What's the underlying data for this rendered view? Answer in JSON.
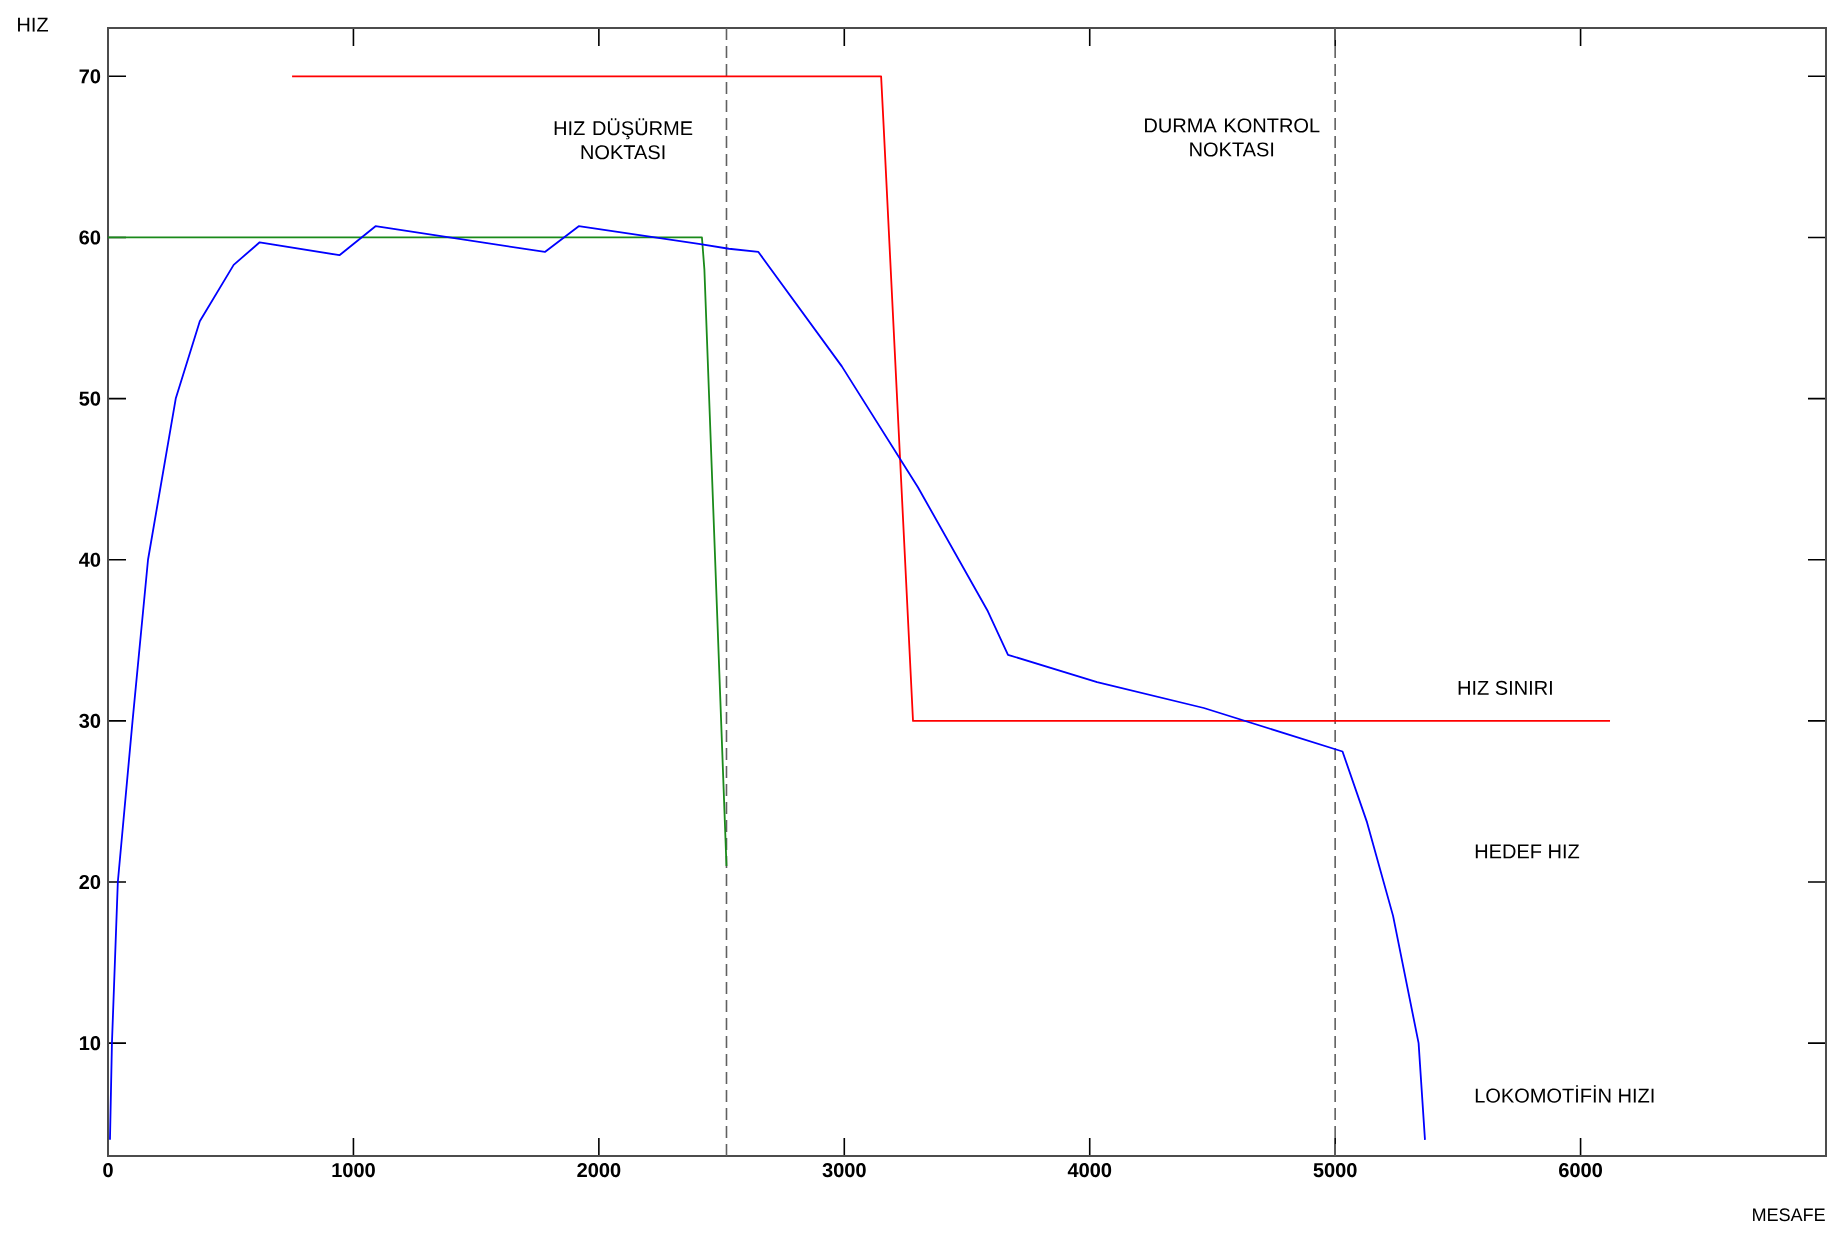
{
  "chart_data": {
    "type": "line",
    "xlabel": "MESAFE",
    "ylabel": "HIZ",
    "xlim": [
      0,
      7000
    ],
    "ylim": [
      3,
      73
    ],
    "xticks": [
      0,
      1000,
      2000,
      3000,
      4000,
      5000,
      6000
    ],
    "yticks": [
      10,
      20,
      30,
      40,
      50,
      60,
      70
    ],
    "annotations": [
      "HIZ SINIRI",
      "HEDEF HIZ",
      "LOKOMOTİFİN HIZI"
    ],
    "grid": false,
    "marker": "none",
    "line_style": "solid",
    "series": [
      {
        "color": "#ff0000",
        "x": [
          750,
          3150,
          3160,
          3280,
          6120
        ],
        "values": [
          70,
          70,
          67,
          30,
          30
        ]
      },
      {
        "color": "#1a8a1a",
        "x": [
          0,
          2420,
          2430,
          2520
        ],
        "values": [
          60,
          60,
          58,
          21
        ]
      },
      {
        "color": "#0000ff",
        "x": [
          8,
          16,
          40,
          100,
          163,
          276,
          374,
          512,
          618,
          943,
          1090,
          1780,
          1918,
          2407,
          2530,
          2650,
          2990,
          3300,
          3585,
          3667,
          4030,
          4465,
          5030,
          5130,
          5236,
          5340,
          5366
        ],
        "values": [
          4,
          10,
          20,
          30,
          40,
          50,
          54.8,
          58.3,
          59.7,
          58.9,
          60.7,
          59.1,
          60.7,
          59.6,
          59.3,
          59.1,
          52,
          44.5,
          36.8,
          34.1,
          32.4,
          30.8,
          28.1,
          23.7,
          17.9,
          10,
          4
        ]
      }
    ],
    "ref_lines": [
      {
        "axis": "x",
        "value": 2520,
        "label": "HIZ DÜŞÜRME NOKTASI",
        "color": "#606060",
        "line_style": "dashed"
      },
      {
        "axis": "x",
        "value": 5000,
        "label": "DURMA KONTROL NOKTASI",
        "color": "#606060",
        "line_style": "dashed"
      }
    ]
  }
}
